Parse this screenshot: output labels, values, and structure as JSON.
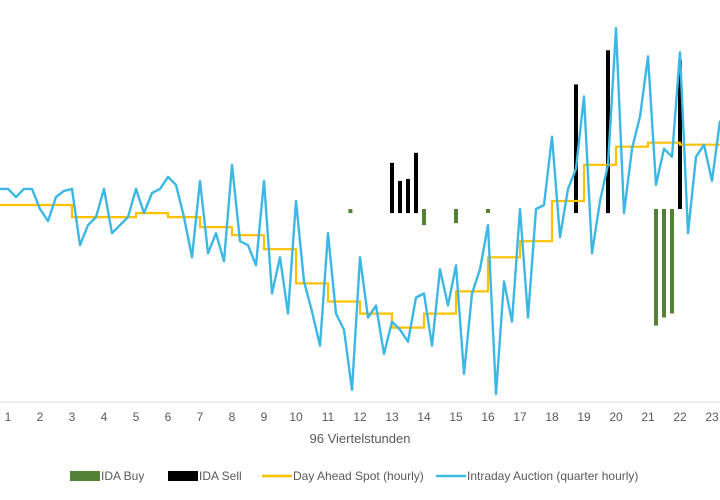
{
  "chart_data": {
    "type": "line",
    "title": "",
    "xlabel": "96 Viertelstunden",
    "ylabel": "",
    "xlim": [
      0.75,
      23.25
    ],
    "ylim": [
      0,
      100
    ],
    "x_ticks": [
      "1",
      "2",
      "3",
      "4",
      "5",
      "6",
      "7",
      "8",
      "9",
      "10",
      "11",
      "12",
      "13",
      "14",
      "15",
      "16",
      "17",
      "18",
      "19",
      "20",
      "21",
      "22",
      "23"
    ],
    "grid": false,
    "legend_position": "bottom",
    "series": [
      {
        "name": "IDA Buy",
        "kind": "bar",
        "color": "#538135",
        "points": [
          {
            "x": 11.7,
            "from": 47,
            "to": 48
          },
          {
            "x": 14.0,
            "from": 44,
            "to": 48
          },
          {
            "x": 15.0,
            "from": 44.5,
            "to": 48
          },
          {
            "x": 16.0,
            "from": 47,
            "to": 48
          },
          {
            "x": 21.25,
            "from": 19,
            "to": 48
          },
          {
            "x": 21.5,
            "from": 21,
            "to": 48
          },
          {
            "x": 21.75,
            "from": 22,
            "to": 48
          }
        ]
      },
      {
        "name": "IDA Sell",
        "kind": "bar",
        "color": "#000000",
        "points": [
          {
            "x": 13.0,
            "from": 47,
            "to": 59.5
          },
          {
            "x": 13.25,
            "from": 47,
            "to": 55
          },
          {
            "x": 13.5,
            "from": 47,
            "to": 55.5
          },
          {
            "x": 13.75,
            "from": 47,
            "to": 62
          },
          {
            "x": 18.75,
            "from": 47,
            "to": 79
          },
          {
            "x": 19.75,
            "from": 47,
            "to": 87.5
          },
          {
            "x": 22.0,
            "from": 48,
            "to": 85
          }
        ]
      },
      {
        "name": "Day Ahead Spot (hourly)",
        "kind": "step",
        "color": "#FFC000",
        "points": [
          {
            "x": 0.75,
            "y": 49
          },
          {
            "x": 1.0,
            "y": 49
          },
          {
            "x": 2.0,
            "y": 49
          },
          {
            "x": 3.0,
            "y": 46
          },
          {
            "x": 4.0,
            "y": 46
          },
          {
            "x": 5.0,
            "y": 47
          },
          {
            "x": 6.0,
            "y": 46
          },
          {
            "x": 7.0,
            "y": 43.5
          },
          {
            "x": 8.0,
            "y": 41.5
          },
          {
            "x": 9.0,
            "y": 38
          },
          {
            "x": 10.0,
            "y": 29.5
          },
          {
            "x": 11.0,
            "y": 25
          },
          {
            "x": 12.0,
            "y": 22
          },
          {
            "x": 13.0,
            "y": 18.5
          },
          {
            "x": 14.0,
            "y": 22
          },
          {
            "x": 15.0,
            "y": 27.5
          },
          {
            "x": 16.0,
            "y": 36
          },
          {
            "x": 17.0,
            "y": 40
          },
          {
            "x": 18.0,
            "y": 50
          },
          {
            "x": 19.0,
            "y": 59
          },
          {
            "x": 20.0,
            "y": 63.5
          },
          {
            "x": 21.0,
            "y": 64.5
          },
          {
            "x": 22.0,
            "y": 64
          },
          {
            "x": 23.25,
            "y": 64
          }
        ]
      },
      {
        "name": "Intraday Auction (quarter hourly)",
        "kind": "line",
        "color": "#3DB7E4",
        "points": [
          {
            "x": 0.75,
            "y": 53
          },
          {
            "x": 1.0,
            "y": 53
          },
          {
            "x": 1.25,
            "y": 51
          },
          {
            "x": 1.5,
            "y": 53
          },
          {
            "x": 1.75,
            "y": 53
          },
          {
            "x": 2.0,
            "y": 48
          },
          {
            "x": 2.25,
            "y": 45
          },
          {
            "x": 2.5,
            "y": 51
          },
          {
            "x": 2.75,
            "y": 52.5
          },
          {
            "x": 3.0,
            "y": 53
          },
          {
            "x": 3.25,
            "y": 39
          },
          {
            "x": 3.5,
            "y": 44
          },
          {
            "x": 3.75,
            "y": 46
          },
          {
            "x": 4.0,
            "y": 53
          },
          {
            "x": 4.25,
            "y": 42
          },
          {
            "x": 4.5,
            "y": 44
          },
          {
            "x": 4.75,
            "y": 46
          },
          {
            "x": 5.0,
            "y": 53
          },
          {
            "x": 5.25,
            "y": 47
          },
          {
            "x": 5.5,
            "y": 52
          },
          {
            "x": 5.75,
            "y": 53
          },
          {
            "x": 6.0,
            "y": 56
          },
          {
            "x": 6.25,
            "y": 54
          },
          {
            "x": 6.5,
            "y": 46
          },
          {
            "x": 6.75,
            "y": 36
          },
          {
            "x": 7.0,
            "y": 55
          },
          {
            "x": 7.25,
            "y": 37
          },
          {
            "x": 7.5,
            "y": 42
          },
          {
            "x": 7.75,
            "y": 35
          },
          {
            "x": 8.0,
            "y": 59
          },
          {
            "x": 8.25,
            "y": 40
          },
          {
            "x": 8.5,
            "y": 39
          },
          {
            "x": 8.75,
            "y": 34
          },
          {
            "x": 9.0,
            "y": 55
          },
          {
            "x": 9.25,
            "y": 27
          },
          {
            "x": 9.5,
            "y": 36
          },
          {
            "x": 9.75,
            "y": 22
          },
          {
            "x": 10.0,
            "y": 50
          },
          {
            "x": 10.25,
            "y": 30
          },
          {
            "x": 10.5,
            "y": 22.5
          },
          {
            "x": 10.75,
            "y": 14
          },
          {
            "x": 11.0,
            "y": 42
          },
          {
            "x": 11.25,
            "y": 22
          },
          {
            "x": 11.5,
            "y": 18
          },
          {
            "x": 11.75,
            "y": 3
          },
          {
            "x": 12.0,
            "y": 36
          },
          {
            "x": 12.25,
            "y": 21
          },
          {
            "x": 12.5,
            "y": 24
          },
          {
            "x": 12.75,
            "y": 12
          },
          {
            "x": 13.0,
            "y": 20
          },
          {
            "x": 13.25,
            "y": 18
          },
          {
            "x": 13.5,
            "y": 15
          },
          {
            "x": 13.75,
            "y": 26
          },
          {
            "x": 14.0,
            "y": 27
          },
          {
            "x": 14.25,
            "y": 14
          },
          {
            "x": 14.5,
            "y": 33
          },
          {
            "x": 14.75,
            "y": 24
          },
          {
            "x": 15.0,
            "y": 34
          },
          {
            "x": 15.25,
            "y": 7
          },
          {
            "x": 15.5,
            "y": 27
          },
          {
            "x": 15.75,
            "y": 33
          },
          {
            "x": 16.0,
            "y": 44
          },
          {
            "x": 16.25,
            "y": 2
          },
          {
            "x": 16.5,
            "y": 30
          },
          {
            "x": 16.75,
            "y": 20
          },
          {
            "x": 17.0,
            "y": 48
          },
          {
            "x": 17.25,
            "y": 21
          },
          {
            "x": 17.5,
            "y": 48
          },
          {
            "x": 17.75,
            "y": 49
          },
          {
            "x": 18.0,
            "y": 66
          },
          {
            "x": 18.25,
            "y": 41
          },
          {
            "x": 18.5,
            "y": 53
          },
          {
            "x": 18.75,
            "y": 58
          },
          {
            "x": 19.0,
            "y": 76
          },
          {
            "x": 19.25,
            "y": 37
          },
          {
            "x": 19.5,
            "y": 50
          },
          {
            "x": 19.75,
            "y": 59
          },
          {
            "x": 20.0,
            "y": 93
          },
          {
            "x": 20.25,
            "y": 47
          },
          {
            "x": 20.5,
            "y": 63
          },
          {
            "x": 20.75,
            "y": 71
          },
          {
            "x": 21.0,
            "y": 86
          },
          {
            "x": 21.25,
            "y": 54
          },
          {
            "x": 21.5,
            "y": 63
          },
          {
            "x": 21.75,
            "y": 61
          },
          {
            "x": 22.0,
            "y": 87
          },
          {
            "x": 22.25,
            "y": 42
          },
          {
            "x": 22.5,
            "y": 61
          },
          {
            "x": 22.75,
            "y": 64
          },
          {
            "x": 23.0,
            "y": 55
          },
          {
            "x": 23.25,
            "y": 70
          }
        ]
      }
    ]
  }
}
